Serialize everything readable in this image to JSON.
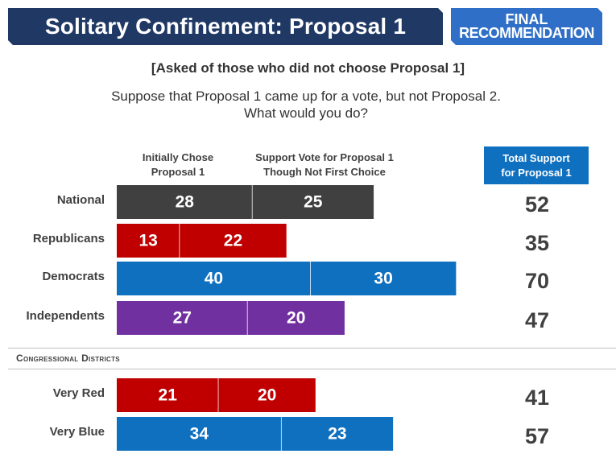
{
  "header": {
    "title": "Solitary Confinement: Proposal 1",
    "badge_line1": "FINAL",
    "badge_line2": "RECOMMENDATION"
  },
  "subtitle_note": "[Asked of those who did not choose Proposal 1]",
  "question_line1": "Suppose that Proposal 1 came up for a vote, but not Proposal 2.",
  "question_line2": "What would you do?",
  "columns": {
    "initial_line1": "Initially Chose",
    "initial_line2": "Proposal 1",
    "support_line1": "Support Vote for Proposal 1",
    "support_line2": "Though Not First Choice",
    "total_line1": "Total Support",
    "total_line2": "for Proposal 1"
  },
  "section_label": "Congressional Districts",
  "colors": {
    "national": "#404040",
    "republicans": "#c00000",
    "democrats": "#0f70c0",
    "independents": "#7030a0",
    "text_value": "#404040"
  },
  "chart_data": {
    "type": "bar",
    "stacked": true,
    "orientation": "horizontal",
    "categories": [
      "National",
      "Republicans",
      "Democrats",
      "Independents",
      "Very Red",
      "Very Blue"
    ],
    "series": [
      {
        "name": "Initially Chose Proposal 1",
        "values": [
          28,
          13,
          40,
          27,
          21,
          34
        ]
      },
      {
        "name": "Support Vote for Proposal 1 Though Not First Choice",
        "values": [
          25,
          22,
          30,
          20,
          20,
          23
        ]
      }
    ],
    "totals": [
      52,
      35,
      70,
      47,
      41,
      57
    ],
    "bar_colors": [
      "#404040",
      "#c00000",
      "#0f70c0",
      "#7030a0",
      "#c00000",
      "#0f70c0"
    ],
    "groups": [
      {
        "label": "",
        "categories": [
          "National",
          "Republicans",
          "Democrats",
          "Independents"
        ]
      },
      {
        "label": "Congressional Districts",
        "categories": [
          "Very Red",
          "Very Blue"
        ]
      }
    ],
    "grid": false,
    "legend": "column headers above bars"
  }
}
